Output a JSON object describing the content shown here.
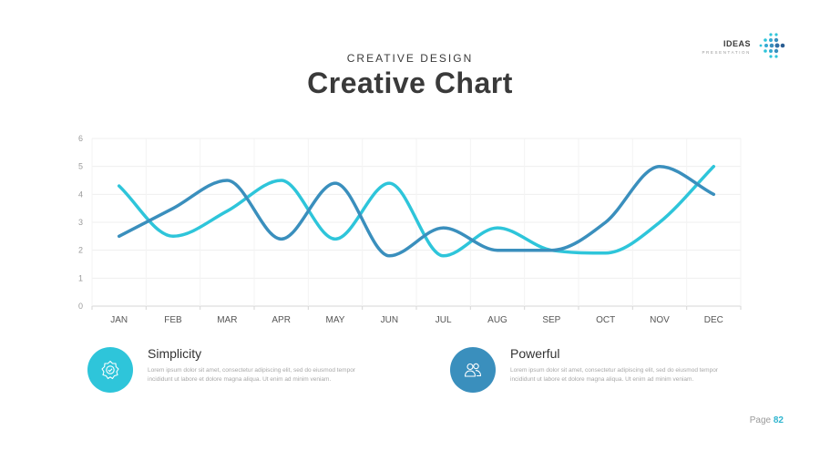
{
  "header": {
    "logo_main": "IDEAS",
    "logo_sub": "PRESENTATION",
    "subtitle": "CREATIVE DESIGN",
    "title": "Creative Chart"
  },
  "chart_data": {
    "type": "line",
    "title": "",
    "xlabel": "",
    "ylabel": "",
    "categories": [
      "JAN",
      "FEB",
      "MAR",
      "APR",
      "MAY",
      "JUN",
      "JUL",
      "AUG",
      "SEP",
      "OCT",
      "NOV",
      "DEC"
    ],
    "ylim": [
      0,
      6
    ],
    "yticks": [
      0,
      1,
      2,
      3,
      4,
      5,
      6
    ],
    "grid": true,
    "legend": "none",
    "series": [
      {
        "values": [
          4.3,
          2.5,
          3.4,
          4.5,
          2.4,
          4.4,
          1.8,
          2.8,
          2.0,
          1.9,
          3.0,
          5.0
        ],
        "color": "#2ec5da"
      },
      {
        "values": [
          2.5,
          3.5,
          4.5,
          2.4,
          4.4,
          1.8,
          2.8,
          2.0,
          2.0,
          3.0,
          5.0,
          4.0
        ],
        "color": "#3a8fbd"
      }
    ]
  },
  "features": [
    {
      "title": "Simplicity",
      "desc": "Lorem ipsum dolor sit amet, consectetur adipiscing elit, sed do eiusmod tempor incididunt ut labore et dolore magna aliqua. Ut enim ad minim veniam.",
      "icon": "gear-icon",
      "color": "#2ec5da"
    },
    {
      "title": "Powerful",
      "desc": "Lorem ipsum dolor sit amet, consectetur adipiscing elit, sed do eiusmod tempor incididunt ut labore et dolore magna aliqua. Ut enim ad minim veniam.",
      "icon": "users-icon",
      "color": "#3a8fbd"
    }
  ],
  "footer": {
    "page_label": "Page",
    "page_number": "82"
  }
}
